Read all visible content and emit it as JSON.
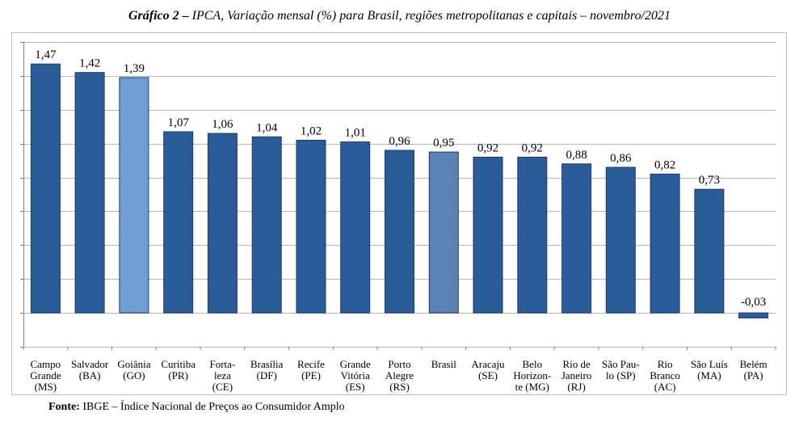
{
  "title": {
    "prefix": "Gráfico 2 –",
    "text": "IPCA, Variação mensal (%) para Brasil, regiões metropolitanas e capitais – novembro/2021"
  },
  "source": {
    "label": "Fonte:",
    "text": "IBGE – Índice Nacional de Preços ao Consumidor Amplo"
  },
  "chart_data": {
    "type": "bar",
    "title": "IPCA, Variação mensal (%) para Brasil, regiões metropolitanas e capitais – novembro/2021",
    "xlabel": "",
    "ylabel": "",
    "ylim": [
      -0.2,
      1.6
    ],
    "grid": true,
    "legend": "none",
    "categories": [
      [
        "Campo",
        "Grande",
        "(MS)"
      ],
      [
        "Salvador",
        "(BA)"
      ],
      [
        "Goiânia",
        "(GO)"
      ],
      [
        "Curitiba",
        "(PR)"
      ],
      [
        "Forta-",
        "leza",
        "(CE)"
      ],
      [
        "Brasília",
        "(DF)"
      ],
      [
        "Recife",
        "(PE)"
      ],
      [
        "Grande",
        "Vitória",
        "(ES)"
      ],
      [
        "Porto",
        "Alegre",
        "(RS)"
      ],
      [
        "Brasil"
      ],
      [
        "Aracaju",
        "(SE)"
      ],
      [
        "Belo",
        "Horizon-",
        "te (MG)"
      ],
      [
        "Rio de",
        "Janeiro",
        "(RJ)"
      ],
      [
        "São Pau-",
        "lo (SP)"
      ],
      [
        "Rio",
        "Branco",
        "(AC)"
      ],
      [
        "São Luís",
        "(MA)"
      ],
      [
        "Belém",
        "(PA)"
      ]
    ],
    "values": [
      1.47,
      1.42,
      1.39,
      1.07,
      1.06,
      1.04,
      1.02,
      1.01,
      0.96,
      0.95,
      0.92,
      0.92,
      0.88,
      0.86,
      0.82,
      0.73,
      -0.03
    ],
    "data_labels": [
      "1,47",
      "1,42",
      "1,39",
      "1,07",
      "1,06",
      "1,04",
      "1,02",
      "1,01",
      "0,96",
      "0,95",
      "0,92",
      "0,92",
      "0,88",
      "0,86",
      "0,82",
      "0,73",
      "-0,03"
    ],
    "colors": {
      "default": "#2c5c97",
      "Goiânia (GO)": "#6f9ed3",
      "Brasil": "#5a83b3",
      "border": "#1f3a5f",
      "grid": "#b7b7b7"
    },
    "highlight_index": {
      "2": "#6f9ed3",
      "9": "#5a83b3"
    }
  }
}
